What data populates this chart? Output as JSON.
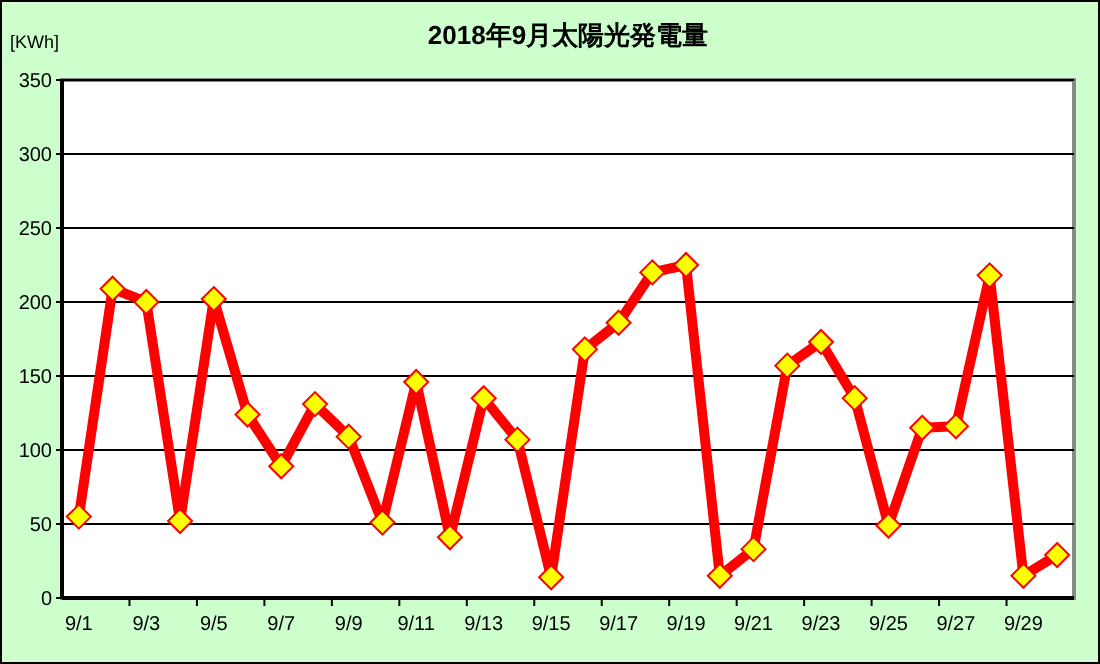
{
  "chart_data": {
    "type": "line",
    "title": "2018年9月太陽光発電量",
    "ylabel": "[KWh]",
    "categories": [
      "9/1",
      null,
      "9/3",
      null,
      "9/5",
      null,
      "9/7",
      null,
      "9/9",
      null,
      "9/11",
      null,
      "9/13",
      null,
      "9/15",
      null,
      "9/17",
      null,
      "9/19",
      null,
      "9/21",
      null,
      "9/23",
      null,
      "9/25",
      null,
      "9/27",
      null,
      "9/29",
      null
    ],
    "series": [
      {
        "color": "#ff0000",
        "values": [
          55,
          209,
          200,
          52,
          202,
          124,
          89,
          131,
          109,
          51,
          146,
          41,
          135,
          107,
          14,
          168,
          186,
          220,
          225,
          15,
          33,
          157,
          173,
          135,
          49,
          115,
          116,
          218,
          15,
          29
        ]
      }
    ],
    "ylim": [
      0,
      350
    ],
    "yticks": [
      0,
      50,
      100,
      150,
      200,
      250,
      300,
      350
    ],
    "grid": "y",
    "marker": "diamond",
    "line_style": "solid"
  }
}
